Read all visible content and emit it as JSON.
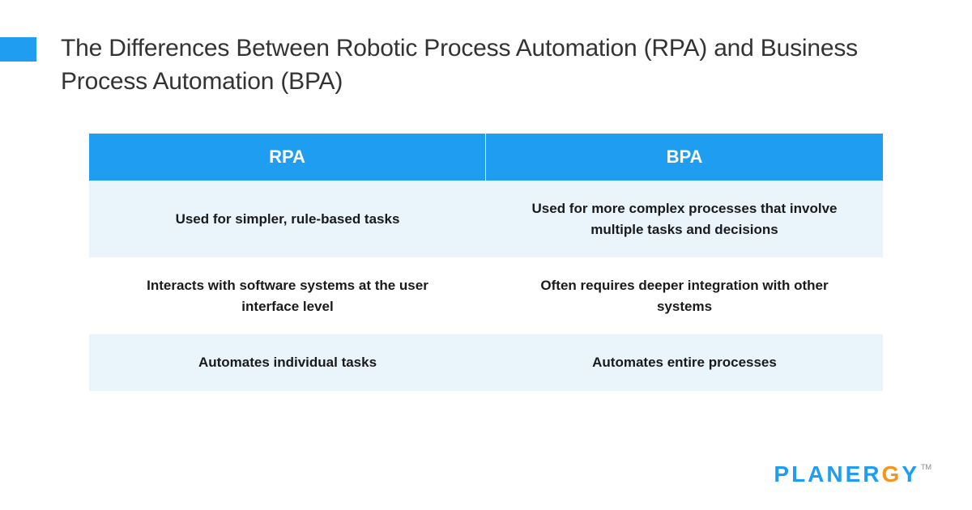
{
  "title": "The Differences Between Robotic Process Automation (RPA) and Business Process Automation (BPA)",
  "comparison_table": {
    "type": "table",
    "columns": [
      "RPA",
      "BPA"
    ],
    "rows": [
      [
        "Used for simpler, rule-based tasks",
        "Used for more complex processes that involve multiple tasks and decisions"
      ],
      [
        "Interacts with software systems at the user interface level",
        "Often requires deeper integration with other systems"
      ],
      [
        "Automates individual tasks",
        "Automates entire processes"
      ]
    ],
    "header_bg": "#1e9df1",
    "header_text_color": "#ffffff",
    "header_fontsize": 22,
    "cell_fontsize": 17,
    "cell_text_color": "#1a1a1a",
    "row_stripe_colors": [
      "#eaf5fb",
      "#ffffff"
    ],
    "column_separator_color": "#ffffff"
  },
  "accent_color": "#1e9df1",
  "background_color": "#ffffff",
  "title_color": "#333333",
  "title_fontsize": 30,
  "brand": {
    "prefix": "PLANER",
    "accent_letter": "G",
    "suffix": "Y",
    "tm": "TM",
    "primary_color": "#1e9df1",
    "accent_letter_color": "#f7941d"
  }
}
